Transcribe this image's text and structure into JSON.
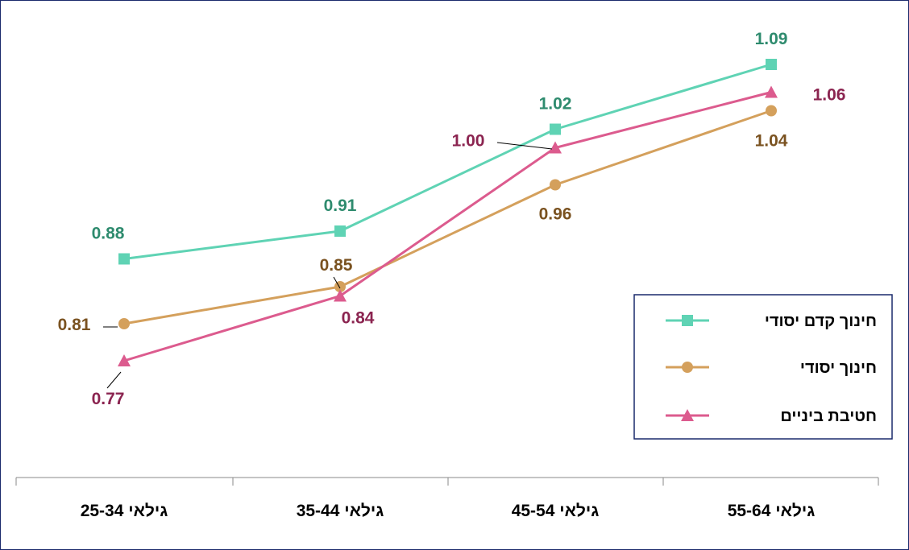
{
  "chart_data": {
    "type": "line",
    "categories": [
      "גילאי  25-34",
      "גילאי 35-44",
      "גילאי 45-54",
      "גילאי 55-64"
    ],
    "series": [
      {
        "name": "חינוך קדם יסודי",
        "values": [
          0.88,
          0.91,
          1.02,
          1.09
        ],
        "color": "#5fd3b4",
        "label_color": "#2e8b6e",
        "marker": "square"
      },
      {
        "name": "חינוך יסודי",
        "values": [
          0.81,
          0.85,
          0.96,
          1.04
        ],
        "color": "#d4a05c",
        "label_color": "#7a5220",
        "marker": "circle"
      },
      {
        "name": "חטיבת ביניים",
        "values": [
          0.77,
          0.84,
          1.0,
          1.06
        ],
        "color": "#dc5b8e",
        "label_color": "#8b2450",
        "marker": "triangle"
      }
    ],
    "data_labels": [
      [
        "0.88",
        "0.91",
        "1.02",
        "1.09"
      ],
      [
        "0.81",
        "0.85",
        "0.96",
        "1.04"
      ],
      [
        "0.77",
        "0.84",
        "1.00",
        "1.06"
      ]
    ],
    "ylim": [
      0.72,
      1.11
    ],
    "grid": false,
    "legend_position": "right"
  }
}
